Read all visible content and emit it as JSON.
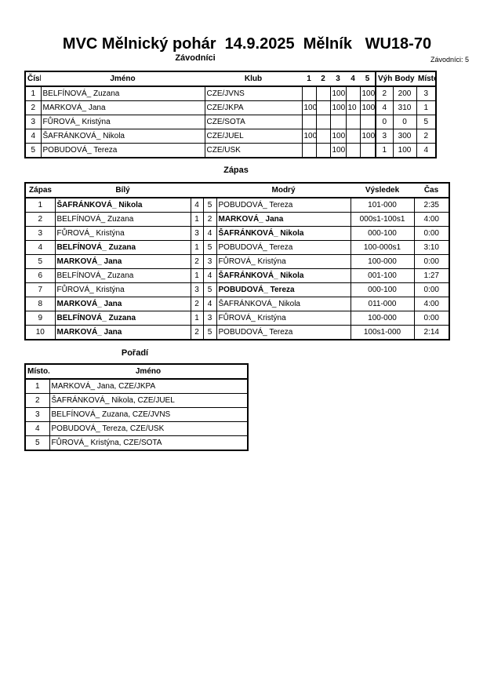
{
  "title": "MVC Mělnický pohár  14.9.2025  Mělník   WU18-70",
  "competitors": {
    "heading": "Závodníci",
    "count_label": "Závodníci: 5",
    "columns": [
      "Číslo",
      "Jméno",
      "Klub",
      "1",
      "2",
      "3",
      "4",
      "5",
      "Výhra",
      "Body",
      "Místo."
    ],
    "rows": [
      [
        "1",
        "BELFÍNOVÁ_ Zuzana",
        "CZE/JVNS",
        "",
        "",
        "100",
        "",
        "100",
        "2",
        "200",
        "3"
      ],
      [
        "2",
        "MARKOVÁ_ Jana",
        "CZE/JKPA",
        "100",
        "",
        "100",
        "10",
        "100",
        "4",
        "310",
        "1"
      ],
      [
        "3",
        "FŮROVÁ_ Kristýna",
        "CZE/SOTA",
        "",
        "",
        "",
        "",
        "",
        "0",
        "0",
        "5"
      ],
      [
        "4",
        "ŠAFRÁNKOVÁ_ Nikola",
        "CZE/JUEL",
        "100",
        "",
        "100",
        "",
        "100",
        "3",
        "300",
        "2"
      ],
      [
        "5",
        "POBUDOVÁ_ Tereza",
        "CZE/USK",
        "",
        "",
        "100",
        "",
        "",
        "1",
        "100",
        "4"
      ]
    ]
  },
  "matches": {
    "heading": "Zápas",
    "columns": [
      "Zápas",
      "Bílý",
      "",
      "",
      "Modrý",
      "Výsledek",
      "Čas"
    ],
    "rows": [
      {
        "cells": [
          "1",
          "ŠAFRÁNKOVÁ_ Nikola",
          "4",
          "5",
          "POBUDOVÁ_ Tereza",
          "101-000",
          "2:35"
        ],
        "winner": "white"
      },
      {
        "cells": [
          "2",
          "BELFÍNOVÁ_ Zuzana",
          "1",
          "2",
          "MARKOVÁ_ Jana",
          "000s1-100s1",
          "4:00"
        ],
        "winner": "blue"
      },
      {
        "cells": [
          "3",
          "FŮROVÁ_ Kristýna",
          "3",
          "4",
          "ŠAFRÁNKOVÁ_ Nikola",
          "000-100",
          "0:00"
        ],
        "winner": "blue"
      },
      {
        "cells": [
          "4",
          "BELFÍNOVÁ_ Zuzana",
          "1",
          "5",
          "POBUDOVÁ_ Tereza",
          "100-000s1",
          "3:10"
        ],
        "winner": "white"
      },
      {
        "cells": [
          "5",
          "MARKOVÁ_ Jana",
          "2",
          "3",
          "FŮROVÁ_ Kristýna",
          "100-000",
          "0:00"
        ],
        "winner": "white"
      },
      {
        "cells": [
          "6",
          "BELFÍNOVÁ_ Zuzana",
          "1",
          "4",
          "ŠAFRÁNKOVÁ_ Nikola",
          "001-100",
          "1:27"
        ],
        "winner": "blue"
      },
      {
        "cells": [
          "7",
          "FŮROVÁ_ Kristýna",
          "3",
          "5",
          "POBUDOVÁ_ Tereza",
          "000-100",
          "0:00"
        ],
        "winner": "blue"
      },
      {
        "cells": [
          "8",
          "MARKOVÁ_ Jana",
          "2",
          "4",
          "ŠAFRÁNKOVÁ_ Nikola",
          "011-000",
          "4:00"
        ],
        "winner": "white"
      },
      {
        "cells": [
          "9",
          "BELFÍNOVÁ_ Zuzana",
          "1",
          "3",
          "FŮROVÁ_ Kristýna",
          "100-000",
          "0:00"
        ],
        "winner": "white"
      },
      {
        "cells": [
          "10",
          "MARKOVÁ_ Jana",
          "2",
          "5",
          "POBUDOVÁ_ Tereza",
          "100s1-000",
          "2:14"
        ],
        "winner": "white"
      }
    ]
  },
  "ranking": {
    "heading": "Pořadí",
    "columns": [
      "Místo.",
      "Jméno"
    ],
    "rows": [
      [
        "1",
        "MARKOVÁ_ Jana, CZE/JKPA"
      ],
      [
        "2",
        "ŠAFRÁNKOVÁ_ Nikola, CZE/JUEL"
      ],
      [
        "3",
        "BELFÍNOVÁ_ Zuzana, CZE/JVNS"
      ],
      [
        "4",
        "POBUDOVÁ_ Tereza, CZE/USK"
      ],
      [
        "5",
        "FŮROVÁ_ Kristýna, CZE/SOTA"
      ]
    ]
  }
}
